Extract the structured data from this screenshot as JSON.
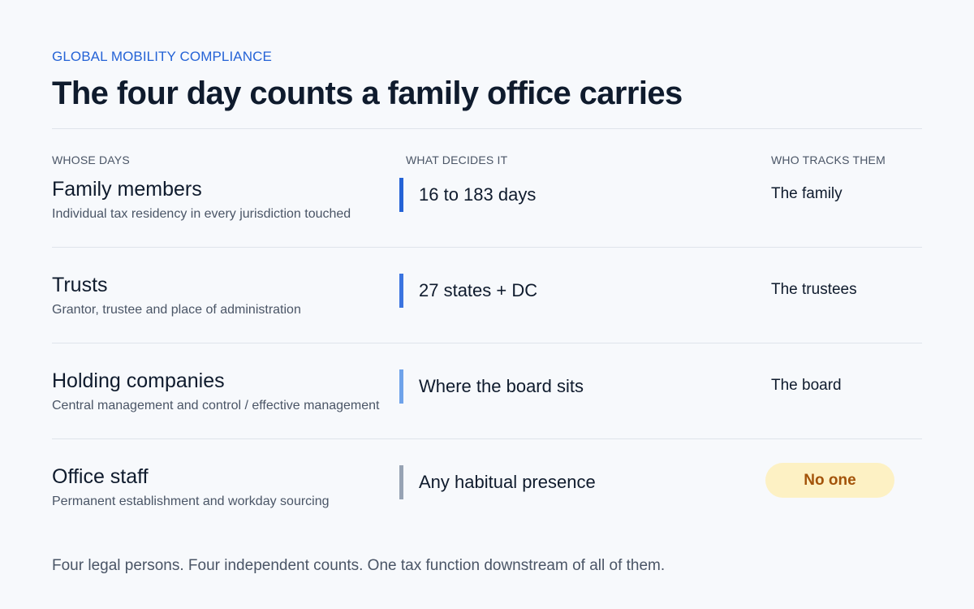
{
  "header": {
    "eyebrow": "GLOBAL MOBILITY COMPLIANCE",
    "title": "The four day counts a family office carries"
  },
  "columns": {
    "whose": "WHOSE DAYS",
    "decides": "WHAT DECIDES IT",
    "tracks": "WHO TRACKS THEM"
  },
  "rows": [
    {
      "who": "Family members",
      "detail": "Individual tax residency in every jurisdiction touched",
      "decides": "16 to 183 days",
      "tracker": "The family",
      "bar_color": "#2563d6"
    },
    {
      "who": "Trusts",
      "detail": "Grantor, trustee and place of administration",
      "decides": "27 states + DC",
      "tracker": "The trustees",
      "bar_color": "#3b74e0"
    },
    {
      "who": "Holding companies",
      "detail": "Central management and control / effective management",
      "decides": "Where the board sits",
      "tracker": "The board",
      "bar_color": "#6fa3ea"
    },
    {
      "who": "Office staff",
      "detail": "Permanent establishment and workday sourcing",
      "decides": "Any habitual presence",
      "tracker": "No one",
      "bar_color": "#97a3b4",
      "tracker_highlight_bg": "#fdf1c4",
      "tracker_highlight_color": "#a3530a"
    }
  ],
  "footer": "Four legal persons. Four independent counts. One tax function downstream of all of them."
}
